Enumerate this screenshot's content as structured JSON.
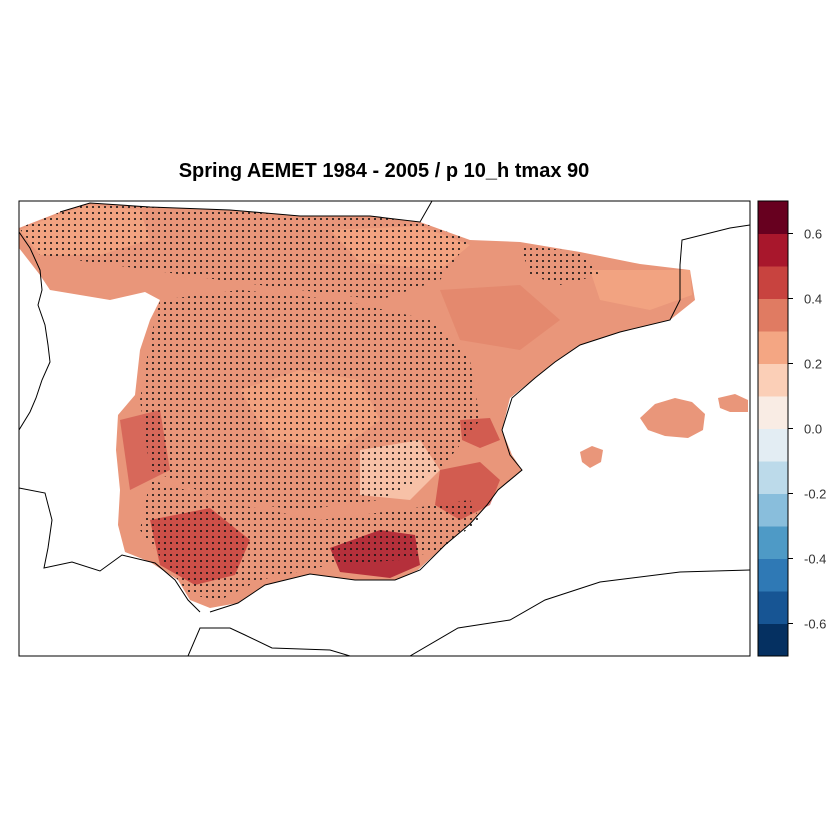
{
  "title": "Spring AEMET 1984 - 2005 / p 10_h tmax 90",
  "colorbar": {
    "colors": [
      "#053061",
      "#175594",
      "#2f79b5",
      "#4e9ac6",
      "#89bedc",
      "#bcdaea",
      "#e3edf3",
      "#f9ece4",
      "#fbcfb7",
      "#f4a683",
      "#e07b62",
      "#c8433f",
      "#a8172c",
      "#67001f"
    ],
    "range": [
      -0.7,
      0.7
    ],
    "tick_values": [
      -0.6,
      -0.4,
      -0.2,
      0.0,
      0.2,
      0.4,
      0.6
    ],
    "tick_labels": [
      "-0.6",
      "-0.4",
      "-0.2",
      "0.0",
      "0.2",
      "0.4",
      "0.6"
    ]
  },
  "map": {
    "region": "Iberian Peninsula and Balearic Islands",
    "fill_base_color": "#e9967a",
    "stipple": "black dots mark grid cells"
  }
}
